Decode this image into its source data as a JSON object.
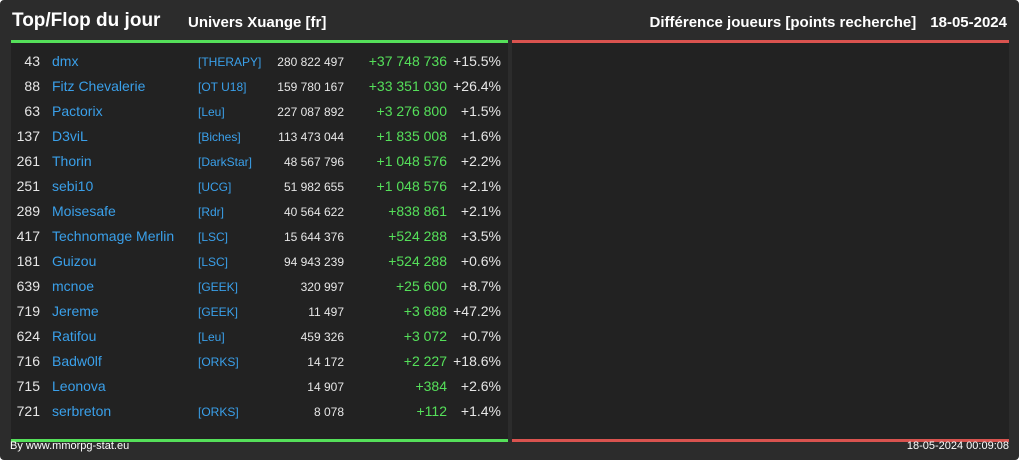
{
  "header": {
    "title": "Top/Flop du jour",
    "universe": "Univers Xuange [fr]",
    "category": "Différence joueurs [points recherche]",
    "date": "18-05-2024"
  },
  "colors": {
    "background": "#2c2c2c",
    "panel": "#222222",
    "top_accent": "#55e05a",
    "flop_accent": "#d9534f",
    "link": "#3aa0ea",
    "gain": "#55e05a"
  },
  "top": {
    "rows": [
      {
        "rank": "43",
        "name": "dmx",
        "alliance": "[THERAPY]",
        "points": "280 822 497",
        "diff": "+37 748 736",
        "pct": "+15.5%"
      },
      {
        "rank": "88",
        "name": "Fitz Chevalerie",
        "alliance": "[OT U18]",
        "points": "159 780 167",
        "diff": "+33 351 030",
        "pct": "+26.4%"
      },
      {
        "rank": "63",
        "name": "Pactorix",
        "alliance": "[Leu]",
        "points": "227 087 892",
        "diff": "+3 276 800",
        "pct": "+1.5%"
      },
      {
        "rank": "137",
        "name": "D3viL",
        "alliance": "[Biches]",
        "points": "113 473 044",
        "diff": "+1 835 008",
        "pct": "+1.6%"
      },
      {
        "rank": "261",
        "name": "Thorin",
        "alliance": "[DarkStar]",
        "points": "48 567 796",
        "diff": "+1 048 576",
        "pct": "+2.2%"
      },
      {
        "rank": "251",
        "name": "sebi10",
        "alliance": "[UCG]",
        "points": "51 982 655",
        "diff": "+1 048 576",
        "pct": "+2.1%"
      },
      {
        "rank": "289",
        "name": "Moisesafe",
        "alliance": "[Rdr]",
        "points": "40 564 622",
        "diff": "+838 861",
        "pct": "+2.1%"
      },
      {
        "rank": "417",
        "name": "Technomage Merlin",
        "alliance": "[LSC]",
        "points": "15 644 376",
        "diff": "+524 288",
        "pct": "+3.5%"
      },
      {
        "rank": "181",
        "name": "Guizou",
        "alliance": "[LSC]",
        "points": "94 943 239",
        "diff": "+524 288",
        "pct": "+0.6%"
      },
      {
        "rank": "639",
        "name": "mcnoe",
        "alliance": "[GEEK]",
        "points": "320 997",
        "diff": "+25 600",
        "pct": "+8.7%"
      },
      {
        "rank": "719",
        "name": "Jereme",
        "alliance": "[GEEK]",
        "points": "11 497",
        "diff": "+3 688",
        "pct": "+47.2%"
      },
      {
        "rank": "624",
        "name": "Ratifou",
        "alliance": "[Leu]",
        "points": "459 326",
        "diff": "+3 072",
        "pct": "+0.7%"
      },
      {
        "rank": "716",
        "name": "Badw0lf",
        "alliance": "[ORKS]",
        "points": "14 172",
        "diff": "+2 227",
        "pct": "+18.6%"
      },
      {
        "rank": "715",
        "name": "Leonova",
        "alliance": "",
        "points": "14 907",
        "diff": "+384",
        "pct": "+2.6%"
      },
      {
        "rank": "721",
        "name": "serbreton",
        "alliance": "[ORKS]",
        "points": "8 078",
        "diff": "+112",
        "pct": "+1.4%"
      }
    ]
  },
  "footer": {
    "credit": "By www.mmorpg-stat.eu",
    "timestamp": "18-05-2024 00:09:08"
  }
}
